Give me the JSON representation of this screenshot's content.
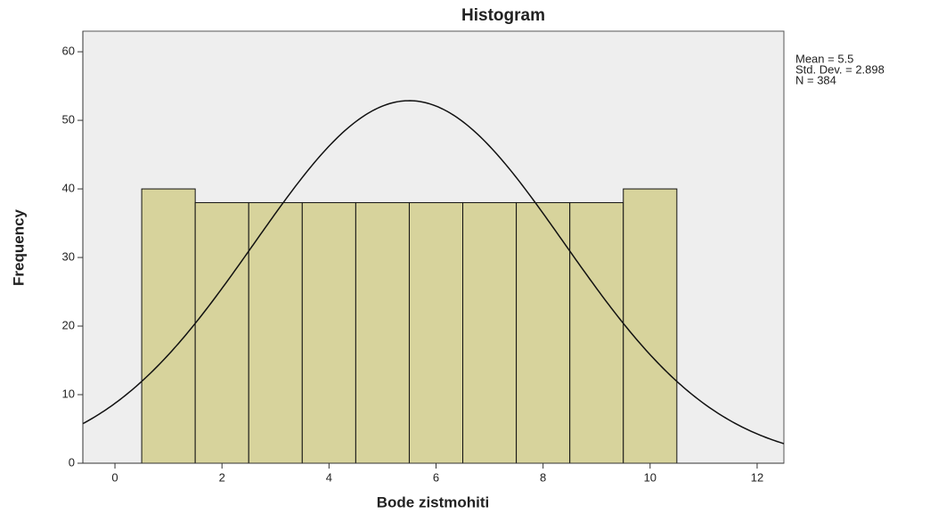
{
  "chart_data": {
    "type": "histogram",
    "title": "Histogram",
    "x_label": "Bode zistmohiti",
    "y_label": "Frequency",
    "bins": [
      0.5,
      1.5,
      2.5,
      3.5,
      4.5,
      5.5,
      6.5,
      7.5,
      8.5,
      9.5,
      10.5
    ],
    "values": [
      40,
      38,
      38,
      38,
      38,
      38,
      38,
      38,
      38,
      40
    ],
    "color": "#d7d39c",
    "xlim": [
      -0.6,
      12.5
    ],
    "xticks": [
      0,
      2,
      4,
      6,
      8,
      10,
      12
    ],
    "ylim": [
      0,
      63
    ],
    "yticks": [
      0,
      10,
      20,
      30,
      40,
      50,
      60
    ],
    "grid": false,
    "stats": [
      {
        "value": 5.5,
        "label": "Mean = 5.5"
      },
      {
        "value": 2.898,
        "label": "Std. Dev. = 2.898"
      },
      {
        "value": 384,
        "label": "N = 384"
      }
    ]
  }
}
